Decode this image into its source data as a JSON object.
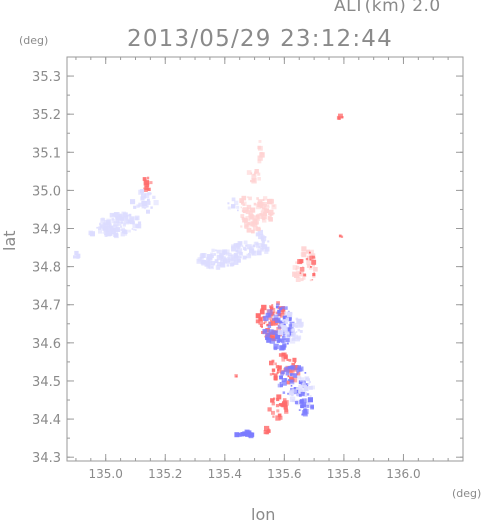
{
  "header": {
    "altitude_label": "ALT(km) 2.0",
    "timestamp": "2013/05/29 23:12:44"
  },
  "chart_data": {
    "type": "scatter",
    "title": "2013/05/29 23:12:44",
    "subtitle": "ALT(km) 2.0",
    "xlabel": "lon",
    "ylabel": "lat",
    "x_unit": "(deg)",
    "y_unit": "(deg)",
    "xlim": [
      134.87,
      136.2
    ],
    "ylim": [
      34.29,
      35.35
    ],
    "x_ticks": [
      135.0,
      135.2,
      135.4,
      135.6,
      135.8,
      136.0
    ],
    "y_ticks": [
      34.3,
      34.4,
      34.5,
      34.6,
      34.7,
      34.8,
      34.9,
      35.0,
      35.1,
      35.2,
      35.3
    ],
    "x_tick_labels": [
      "135.0",
      "135.2",
      "135.4",
      "135.6",
      "135.8",
      "136.0"
    ],
    "y_tick_labels": [
      "34.3",
      "34.4",
      "34.5",
      "34.6",
      "34.7",
      "34.8",
      "34.9",
      "35.0",
      "35.1",
      "35.2",
      "35.3"
    ],
    "grid": false,
    "colors": {
      "approaching": "#7b7bff",
      "receding": "#ff6b6b",
      "light_blue": "#dcdcff",
      "light_red": "#ffd2d2",
      "axis": "#9a9a9a"
    },
    "clusters": [
      {
        "lon": 135.05,
        "lat": 34.91,
        "rlon": 0.07,
        "rlat": 0.03,
        "n": 90,
        "tone": "light_blue"
      },
      {
        "lon": 135.0,
        "lat": 34.9,
        "rlon": 0.03,
        "rlat": 0.02,
        "n": 25,
        "tone": "light_blue"
      },
      {
        "lon": 135.14,
        "lat": 35.02,
        "rlon": 0.02,
        "rlat": 0.02,
        "n": 10,
        "tone": "receding"
      },
      {
        "lon": 135.13,
        "lat": 34.97,
        "rlon": 0.04,
        "rlat": 0.03,
        "n": 25,
        "tone": "light_blue"
      },
      {
        "lon": 134.9,
        "lat": 34.83,
        "rlon": 0.01,
        "rlat": 0.01,
        "n": 6,
        "tone": "light_blue"
      },
      {
        "lon": 134.95,
        "lat": 34.88,
        "rlon": 0.01,
        "rlat": 0.01,
        "n": 4,
        "tone": "light_blue"
      },
      {
        "lon": 135.38,
        "lat": 34.82,
        "rlon": 0.07,
        "rlat": 0.025,
        "n": 80,
        "tone": "light_blue"
      },
      {
        "lon": 135.46,
        "lat": 34.84,
        "rlon": 0.04,
        "rlat": 0.025,
        "n": 40,
        "tone": "light_blue"
      },
      {
        "lon": 135.52,
        "lat": 34.86,
        "rlon": 0.03,
        "rlat": 0.03,
        "n": 30,
        "tone": "light_blue"
      },
      {
        "lon": 135.49,
        "lat": 34.94,
        "rlon": 0.05,
        "rlat": 0.05,
        "n": 70,
        "tone": "light_red"
      },
      {
        "lon": 135.54,
        "lat": 34.95,
        "rlon": 0.03,
        "rlat": 0.03,
        "n": 30,
        "tone": "light_red"
      },
      {
        "lon": 135.5,
        "lat": 35.04,
        "rlon": 0.02,
        "rlat": 0.02,
        "n": 12,
        "tone": "light_red"
      },
      {
        "lon": 135.52,
        "lat": 35.1,
        "rlon": 0.01,
        "rlat": 0.03,
        "n": 8,
        "tone": "light_red"
      },
      {
        "lon": 135.43,
        "lat": 34.96,
        "rlon": 0.02,
        "rlat": 0.02,
        "n": 8,
        "tone": "light_blue"
      },
      {
        "lon": 135.79,
        "lat": 35.19,
        "rlon": 0.008,
        "rlat": 0.006,
        "n": 8,
        "tone": "receding"
      },
      {
        "lon": 135.79,
        "lat": 34.88,
        "rlon": 0.004,
        "rlat": 0.004,
        "n": 2,
        "tone": "receding"
      },
      {
        "lon": 135.67,
        "lat": 34.8,
        "rlon": 0.04,
        "rlat": 0.05,
        "n": 30,
        "tone": "light_red"
      },
      {
        "lon": 135.68,
        "lat": 34.8,
        "rlon": 0.03,
        "rlat": 0.04,
        "n": 16,
        "tone": "receding"
      },
      {
        "lon": 135.56,
        "lat": 34.66,
        "rlon": 0.05,
        "rlat": 0.05,
        "n": 70,
        "tone": "receding"
      },
      {
        "lon": 135.58,
        "lat": 34.64,
        "rlon": 0.05,
        "rlat": 0.06,
        "n": 70,
        "tone": "approaching"
      },
      {
        "lon": 135.62,
        "lat": 34.64,
        "rlon": 0.04,
        "rlat": 0.04,
        "n": 40,
        "tone": "light_blue"
      },
      {
        "lon": 135.6,
        "lat": 34.53,
        "rlon": 0.05,
        "rlat": 0.04,
        "n": 45,
        "tone": "receding"
      },
      {
        "lon": 135.63,
        "lat": 34.5,
        "rlon": 0.05,
        "rlat": 0.04,
        "n": 45,
        "tone": "approaching"
      },
      {
        "lon": 135.66,
        "lat": 34.47,
        "rlon": 0.04,
        "rlat": 0.04,
        "n": 40,
        "tone": "light_blue"
      },
      {
        "lon": 135.58,
        "lat": 34.43,
        "rlon": 0.03,
        "rlat": 0.03,
        "n": 25,
        "tone": "receding"
      },
      {
        "lon": 135.67,
        "lat": 34.44,
        "rlon": 0.03,
        "rlat": 0.03,
        "n": 25,
        "tone": "approaching"
      },
      {
        "lon": 135.47,
        "lat": 34.36,
        "rlon": 0.03,
        "rlat": 0.006,
        "n": 20,
        "tone": "approaching"
      },
      {
        "lon": 135.54,
        "lat": 34.37,
        "rlon": 0.01,
        "rlat": 0.01,
        "n": 6,
        "tone": "receding"
      },
      {
        "lon": 135.44,
        "lat": 34.51,
        "rlon": 0.005,
        "rlat": 0.005,
        "n": 2,
        "tone": "receding"
      }
    ]
  }
}
